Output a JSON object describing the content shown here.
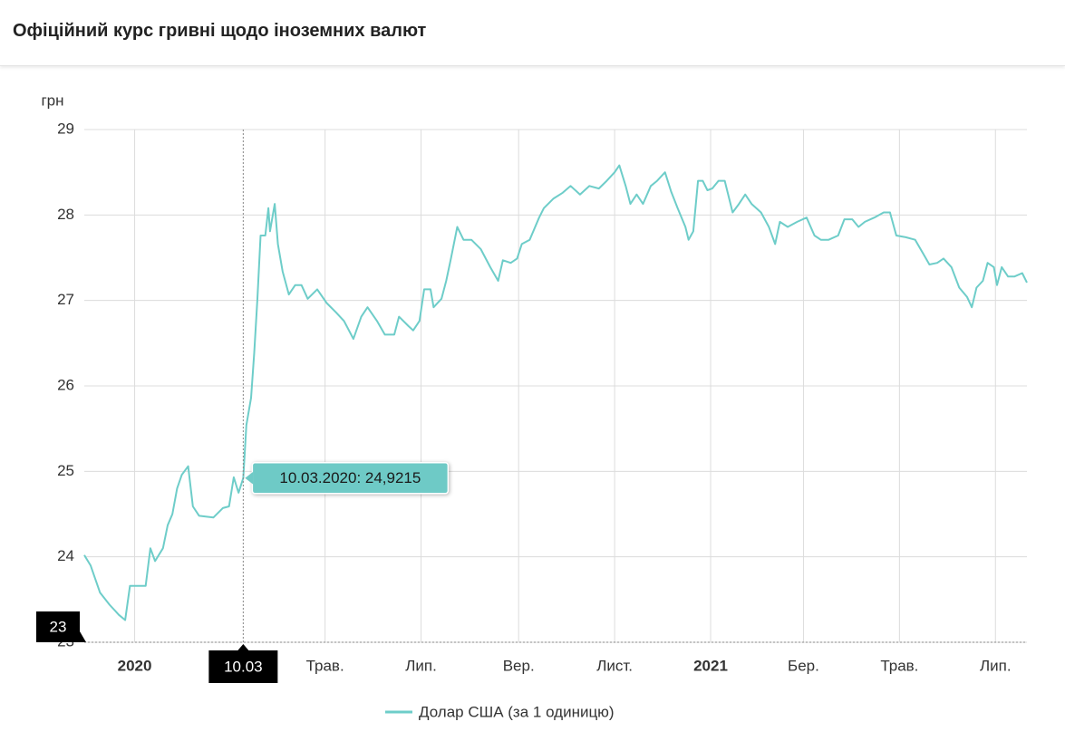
{
  "chart_data": {
    "type": "line",
    "title": "Офіційний курс гривні щодо іноземних валют",
    "y_label": "грн",
    "x": [
      "2019-11-30",
      "2019-12-04",
      "2019-12-10",
      "2019-12-16",
      "2019-12-22",
      "2019-12-26",
      "2019-12-29",
      "2020-01-08",
      "2020-01-11",
      "2020-01-14",
      "2020-01-19",
      "2020-01-22",
      "2020-01-25",
      "2020-01-28",
      "2020-01-31",
      "2020-02-04",
      "2020-02-07",
      "2020-02-11",
      "2020-02-20",
      "2020-02-26",
      "2020-03-01",
      "2020-03-04",
      "2020-03-07",
      "2020-03-10",
      "2020-03-12",
      "2020-03-15",
      "2020-03-17",
      "2020-03-19",
      "2020-03-21",
      "2020-03-24",
      "2020-03-26",
      "2020-03-27",
      "2020-03-30",
      "2020-04-01",
      "2020-04-04",
      "2020-04-08",
      "2020-04-12",
      "2020-04-16",
      "2020-04-20",
      "2020-04-26",
      "2020-05-02",
      "2020-05-08",
      "2020-05-13",
      "2020-05-19",
      "2020-05-24",
      "2020-05-28",
      "2020-06-03",
      "2020-06-08",
      "2020-06-14",
      "2020-06-17",
      "2020-06-23",
      "2020-06-26",
      "2020-06-30",
      "2020-07-03",
      "2020-07-07",
      "2020-07-09",
      "2020-07-14",
      "2020-07-17",
      "2020-07-20",
      "2020-07-24",
      "2020-07-28",
      "2020-08-02",
      "2020-08-08",
      "2020-08-14",
      "2020-08-19",
      "2020-08-22",
      "2020-08-27",
      "2020-08-31",
      "2020-09-03",
      "2020-09-08",
      "2020-09-14",
      "2020-09-17",
      "2020-09-23",
      "2020-09-29",
      "2020-10-04",
      "2020-10-10",
      "2020-10-16",
      "2020-10-22",
      "2020-10-27",
      "2020-11-01",
      "2020-11-04",
      "2020-11-08",
      "2020-11-11",
      "2020-11-15",
      "2020-11-19",
      "2020-11-24",
      "2020-11-28",
      "2020-12-03",
      "2020-12-07",
      "2020-12-11",
      "2020-12-16",
      "2020-12-18",
      "2020-12-21",
      "2020-12-24",
      "2020-12-27",
      "2020-12-30",
      "2021-01-02",
      "2021-01-06",
      "2021-01-10",
      "2021-01-15",
      "2021-01-19",
      "2021-01-23",
      "2021-01-27",
      "2021-02-02",
      "2021-02-07",
      "2021-02-11",
      "2021-02-14",
      "2021-02-19",
      "2021-02-25",
      "2021-03-03",
      "2021-03-08",
      "2021-03-12",
      "2021-03-17",
      "2021-03-23",
      "2021-03-27",
      "2021-04-01",
      "2021-04-05",
      "2021-04-09",
      "2021-04-15",
      "2021-04-21",
      "2021-04-25",
      "2021-04-29",
      "2021-05-05",
      "2021-05-11",
      "2021-05-16",
      "2021-05-20",
      "2021-05-25",
      "2021-05-29",
      "2021-06-03",
      "2021-06-08",
      "2021-06-13",
      "2021-06-16",
      "2021-06-19",
      "2021-06-23",
      "2021-06-26",
      "2021-06-30",
      "2021-07-02",
      "2021-07-05",
      "2021-07-09",
      "2021-07-13",
      "2021-07-18",
      "2021-07-21"
    ],
    "series": [
      {
        "name": "Долар США (за 1 одиницю)",
        "color": "#6ecdc9",
        "values": [
          24.02,
          23.9,
          23.58,
          23.44,
          23.32,
          23.26,
          23.66,
          23.66,
          24.1,
          23.95,
          24.1,
          24.37,
          24.5,
          24.8,
          24.96,
          25.06,
          24.59,
          24.48,
          24.46,
          24.57,
          24.59,
          24.93,
          24.75,
          24.9215,
          25.54,
          25.86,
          26.39,
          27.02,
          27.76,
          27.76,
          28.08,
          27.81,
          28.13,
          27.66,
          27.34,
          27.07,
          27.18,
          27.18,
          27.02,
          27.13,
          26.97,
          26.86,
          26.76,
          26.55,
          26.81,
          26.92,
          26.76,
          26.6,
          26.6,
          26.81,
          26.7,
          26.65,
          26.76,
          27.13,
          27.13,
          26.92,
          27.02,
          27.23,
          27.49,
          27.86,
          27.71,
          27.71,
          27.6,
          27.39,
          27.23,
          27.47,
          27.44,
          27.49,
          27.66,
          27.71,
          27.97,
          28.08,
          28.19,
          28.26,
          28.34,
          28.24,
          28.34,
          28.31,
          28.4,
          28.5,
          28.58,
          28.34,
          28.13,
          28.24,
          28.13,
          28.34,
          28.4,
          28.5,
          28.27,
          28.08,
          27.86,
          27.71,
          27.81,
          28.4,
          28.4,
          28.29,
          28.31,
          28.4,
          28.4,
          28.03,
          28.13,
          28.24,
          28.13,
          28.03,
          27.86,
          27.66,
          27.92,
          27.86,
          27.92,
          27.97,
          27.76,
          27.71,
          27.71,
          27.76,
          27.95,
          27.95,
          27.86,
          27.92,
          27.97,
          28.03,
          28.03,
          27.76,
          27.74,
          27.71,
          27.55,
          27.42,
          27.44,
          27.49,
          27.39,
          27.15,
          27.04,
          26.92,
          27.15,
          27.23,
          27.44,
          27.39,
          27.18,
          27.39,
          27.28,
          27.28,
          27.32,
          27.21
        ]
      }
    ],
    "xlim": [
      "2019-11-30",
      "2021-07-21"
    ],
    "xticks": [
      {
        "value": "2020-01-01",
        "label": "2020"
      },
      {
        "value": "2020-05-01",
        "label": "Трав."
      },
      {
        "value": "2020-07-01",
        "label": "Лип."
      },
      {
        "value": "2020-09-01",
        "label": "Вер."
      },
      {
        "value": "2020-11-01",
        "label": "Лист."
      },
      {
        "value": "2021-01-01",
        "label": "2021"
      },
      {
        "value": "2021-03-01",
        "label": "Бер."
      },
      {
        "value": "2021-05-01",
        "label": "Трав."
      },
      {
        "value": "2021-07-01",
        "label": "Лип."
      }
    ],
    "ylim": [
      23,
      29
    ],
    "yticks": [
      23,
      24,
      25,
      26,
      27,
      28,
      29
    ],
    "grid": true,
    "legend": "bottom",
    "crosshair": {
      "x": "2020-03-10",
      "x_label": "10.03",
      "y": 23,
      "tooltip": "10.03.2020: 24,9215"
    }
  }
}
